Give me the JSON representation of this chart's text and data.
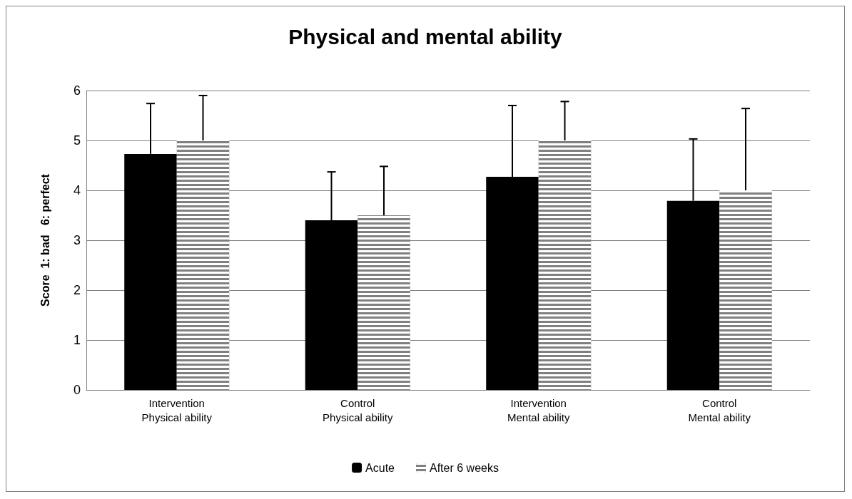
{
  "chart_data": {
    "type": "bar",
    "title": "Physical and mental ability",
    "ylabel": "Score  1: bad   6: perfect",
    "categories": [
      "Intervention\nPhysical ability",
      "Control\nPhysical ability",
      "Intervention\nMental ability",
      "Control\nMental ability"
    ],
    "series": [
      {
        "name": "Acute",
        "color": "#000000",
        "values": [
          4.73,
          3.4,
          4.27,
          3.79
        ],
        "errors": [
          [
            4.73,
            5.74
          ],
          [
            3.4,
            4.37
          ],
          [
            4.27,
            5.7
          ],
          [
            3.79,
            5.03
          ]
        ]
      },
      {
        "name": "After 6 weeks",
        "color": "#808080",
        "values": [
          5.0,
          3.5,
          5.0,
          4.0
        ],
        "errors": [
          [
            5.0,
            5.9
          ],
          [
            3.5,
            4.48
          ],
          [
            5.0,
            5.78
          ],
          [
            4.0,
            5.64
          ]
        ]
      }
    ],
    "ylim": [
      0,
      6
    ],
    "yticks": [
      0,
      1,
      2,
      3,
      4,
      5,
      6
    ],
    "grid": "y",
    "legend": "bottom"
  }
}
